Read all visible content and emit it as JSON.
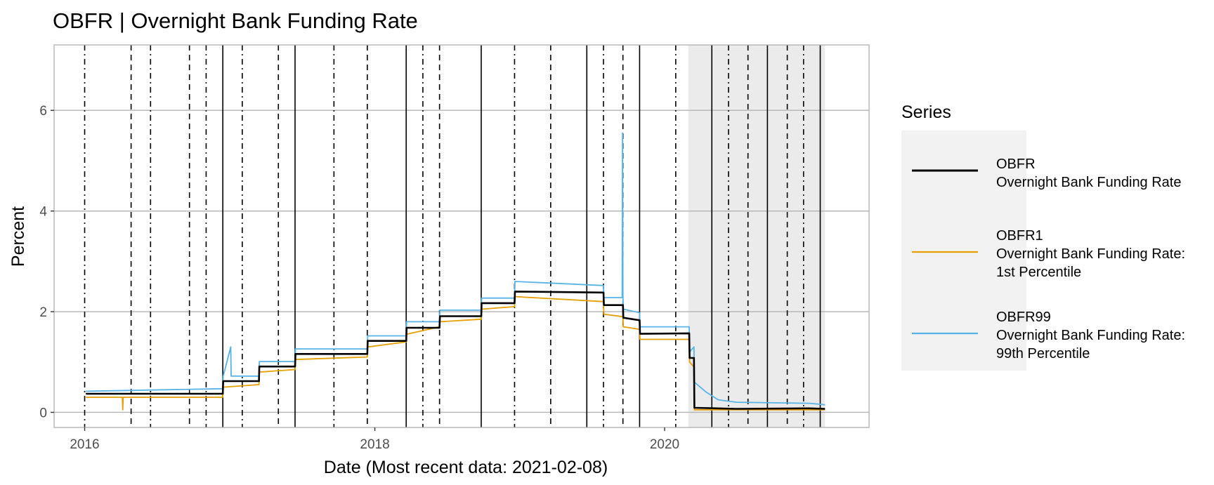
{
  "chart_data": {
    "type": "line",
    "title": "OBFR | Overnight Bank Funding Rate",
    "xlabel": "Date (Most recent data: 2021-02-08)",
    "ylabel": "Percent",
    "xlim": [
      "2015-10-16",
      "2021-05-30"
    ],
    "ylim": [
      -0.3,
      7.3
    ],
    "x_ticks": [
      "2016-01-01",
      "2018-01-01",
      "2020-01-01"
    ],
    "x_tick_labels": [
      "2016",
      "2018",
      "2020"
    ],
    "y_ticks": [
      0,
      2,
      4,
      6
    ],
    "y_tick_labels": [
      "0",
      "2",
      "4",
      "6"
    ],
    "grid": true,
    "legend_position": "right",
    "legend_title": "Series",
    "shaded_region": {
      "start": "2020-03-01",
      "end": "2021-02-08",
      "color": "#ebebeb"
    },
    "fomc_dates_solid": [
      "2016-12-14",
      "2017-06-14",
      "2018-03-21",
      "2018-09-26",
      "2019-06-19",
      "2019-10-30",
      "2020-04-29",
      "2020-09-16",
      "2021-01-27"
    ],
    "fomc_dates_dashed": [
      "2016-04-27",
      "2016-09-21",
      "2017-05-03",
      "2017-12-13",
      "2018-06-13",
      "2019-03-20",
      "2019-09-18",
      "2020-07-29",
      "2020-11-05"
    ],
    "fomc_dates_dashdot": [
      "2016-01-01",
      "2016-06-15",
      "2016-11-02",
      "2017-02-01",
      "2017-09-20",
      "2018-05-02",
      "2018-12-19",
      "2019-07-31",
      "2020-01-29",
      "2020-06-10",
      "2020-12-16"
    ],
    "series": [
      {
        "name": "OBFR",
        "legend_label_lines": [
          "OBFR",
          "Overnight Bank Funding Rate"
        ],
        "color": "#000000",
        "points": [
          [
            "2016-01-04",
            0.37
          ],
          [
            "2016-12-14",
            0.37
          ],
          [
            "2016-12-15",
            0.62
          ],
          [
            "2017-03-15",
            0.62
          ],
          [
            "2017-03-16",
            0.91
          ],
          [
            "2017-06-14",
            0.91
          ],
          [
            "2017-06-15",
            1.16
          ],
          [
            "2017-12-13",
            1.16
          ],
          [
            "2017-12-14",
            1.42
          ],
          [
            "2018-03-21",
            1.42
          ],
          [
            "2018-03-22",
            1.68
          ],
          [
            "2018-06-13",
            1.68
          ],
          [
            "2018-06-14",
            1.91
          ],
          [
            "2018-09-26",
            1.91
          ],
          [
            "2018-09-27",
            2.17
          ],
          [
            "2018-12-19",
            2.17
          ],
          [
            "2018-12-20",
            2.4
          ],
          [
            "2019-07-31",
            2.38
          ],
          [
            "2019-08-01",
            2.13
          ],
          [
            "2019-09-18",
            2.13
          ],
          [
            "2019-09-19",
            1.88
          ],
          [
            "2019-10-30",
            1.83
          ],
          [
            "2019-10-31",
            1.56
          ],
          [
            "2020-03-03",
            1.57
          ],
          [
            "2020-03-04",
            1.08
          ],
          [
            "2020-03-15",
            1.08
          ],
          [
            "2020-03-16",
            0.09
          ],
          [
            "2020-06-30",
            0.07
          ],
          [
            "2020-12-31",
            0.08
          ],
          [
            "2021-02-08",
            0.07
          ]
        ]
      },
      {
        "name": "OBFR1",
        "legend_label_lines": [
          "OBFR1",
          "Overnight Bank Funding Rate:",
          "1st Percentile"
        ],
        "color": "#e69f00",
        "points": [
          [
            "2016-01-04",
            0.3
          ],
          [
            "2016-04-05",
            0.3
          ],
          [
            "2016-04-06",
            0.05
          ],
          [
            "2016-04-07",
            0.3
          ],
          [
            "2016-12-14",
            0.3
          ],
          [
            "2016-12-15",
            0.5
          ],
          [
            "2017-03-15",
            0.55
          ],
          [
            "2017-03-16",
            0.8
          ],
          [
            "2017-06-14",
            0.85
          ],
          [
            "2017-06-15",
            1.05
          ],
          [
            "2017-12-13",
            1.1
          ],
          [
            "2017-12-14",
            1.3
          ],
          [
            "2018-03-21",
            1.4
          ],
          [
            "2018-03-22",
            1.55
          ],
          [
            "2018-06-13",
            1.7
          ],
          [
            "2018-06-14",
            1.8
          ],
          [
            "2018-09-26",
            1.85
          ],
          [
            "2018-09-27",
            2.05
          ],
          [
            "2018-12-19",
            2.1
          ],
          [
            "2018-12-20",
            2.3
          ],
          [
            "2019-07-31",
            2.2
          ],
          [
            "2019-08-01",
            1.95
          ],
          [
            "2019-09-18",
            1.9
          ],
          [
            "2019-09-19",
            1.7
          ],
          [
            "2019-10-30",
            1.65
          ],
          [
            "2019-10-31",
            1.45
          ],
          [
            "2020-03-03",
            1.45
          ],
          [
            "2020-03-04",
            1.0
          ],
          [
            "2020-03-15",
            0.9
          ],
          [
            "2020-03-16",
            0.05
          ],
          [
            "2021-02-08",
            0.05
          ]
        ]
      },
      {
        "name": "OBFR99",
        "legend_label_lines": [
          "OBFR99",
          "Overnight Bank Funding Rate:",
          "99th Percentile"
        ],
        "color": "#56b4e9",
        "points": [
          [
            "2016-01-04",
            0.42
          ],
          [
            "2016-12-14",
            0.47
          ],
          [
            "2016-12-15",
            0.72
          ],
          [
            "2017-01-03",
            1.3
          ],
          [
            "2017-01-04",
            0.72
          ],
          [
            "2017-03-15",
            0.72
          ],
          [
            "2017-03-16",
            1.01
          ],
          [
            "2017-06-14",
            1.01
          ],
          [
            "2017-06-15",
            1.26
          ],
          [
            "2017-12-13",
            1.26
          ],
          [
            "2017-12-14",
            1.52
          ],
          [
            "2018-03-21",
            1.52
          ],
          [
            "2018-03-22",
            1.8
          ],
          [
            "2018-06-13",
            1.8
          ],
          [
            "2018-06-14",
            2.03
          ],
          [
            "2018-09-26",
            2.03
          ],
          [
            "2018-09-27",
            2.27
          ],
          [
            "2018-12-19",
            2.27
          ],
          [
            "2018-12-20",
            2.6
          ],
          [
            "2019-07-31",
            2.52
          ],
          [
            "2019-08-01",
            2.28
          ],
          [
            "2019-09-16",
            2.28
          ],
          [
            "2019-09-17",
            5.55
          ],
          [
            "2019-09-18",
            2.3
          ],
          [
            "2019-09-19",
            2.05
          ],
          [
            "2019-10-30",
            1.98
          ],
          [
            "2019-10-31",
            1.7
          ],
          [
            "2020-03-03",
            1.7
          ],
          [
            "2020-03-04",
            1.2
          ],
          [
            "2020-03-15",
            1.3
          ],
          [
            "2020-03-16",
            0.6
          ],
          [
            "2020-04-15",
            0.4
          ],
          [
            "2020-05-15",
            0.25
          ],
          [
            "2020-06-30",
            0.2
          ],
          [
            "2020-12-31",
            0.18
          ],
          [
            "2021-02-08",
            0.15
          ]
        ]
      }
    ]
  }
}
